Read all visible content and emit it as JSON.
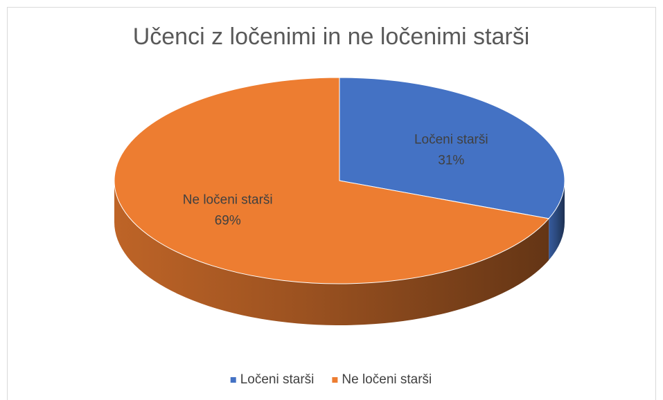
{
  "chart_data": {
    "type": "pie3d",
    "title": "Učenci z ločenimi in ne ločenimi starši",
    "categories": [
      "Ločeni starši",
      "Ne ločeni starši"
    ],
    "values": [
      31,
      69
    ],
    "value_labels": [
      "31%",
      "69%"
    ],
    "colors": [
      "#4472c4",
      "#ed7d31"
    ],
    "legend": "bottom"
  }
}
